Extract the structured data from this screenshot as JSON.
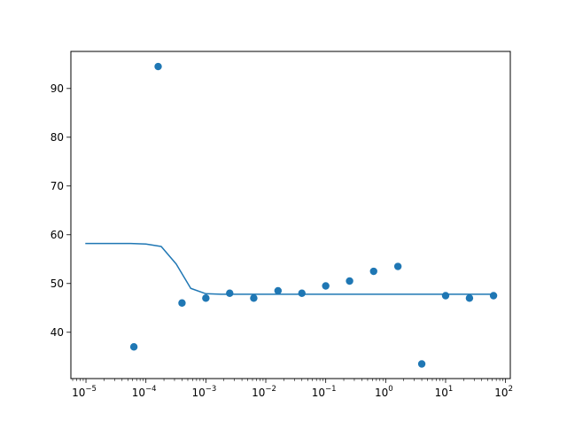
{
  "chart_data": {
    "type": "scatter",
    "title": "",
    "xlabel": "",
    "ylabel": "",
    "xscale": "log",
    "xlim": [
      5.6e-06,
      120
    ],
    "ylim": [
      30.5,
      97.6
    ],
    "grid": false,
    "legend": "none",
    "x_ticks": [
      {
        "base": "10",
        "exp": "−5",
        "value": 1e-05
      },
      {
        "base": "10",
        "exp": "−4",
        "value": 0.0001
      },
      {
        "base": "10",
        "exp": "−3",
        "value": 0.001
      },
      {
        "base": "10",
        "exp": "−2",
        "value": 0.01
      },
      {
        "base": "10",
        "exp": "−1",
        "value": 0.1
      },
      {
        "base": "10",
        "exp": "0",
        "value": 1
      },
      {
        "base": "10",
        "exp": "1",
        "value": 10
      },
      {
        "base": "10",
        "exp": "2",
        "value": 100
      }
    ],
    "y_ticks": [
      {
        "label": "40",
        "value": 40
      },
      {
        "label": "50",
        "value": 50
      },
      {
        "label": "60",
        "value": 60
      },
      {
        "label": "70",
        "value": 70
      },
      {
        "label": "80",
        "value": 80
      },
      {
        "label": "90",
        "value": 90
      }
    ],
    "series": [
      {
        "type": "scatter",
        "color": "#1f77b4",
        "points": [
          [
            6.3e-05,
            37.0
          ],
          [
            0.00016,
            94.5
          ],
          [
            0.0004,
            46.0
          ],
          [
            0.001,
            47.0
          ],
          [
            0.0025,
            48.0
          ],
          [
            0.0063,
            47.0
          ],
          [
            0.016,
            48.5
          ],
          [
            0.04,
            48.0
          ],
          [
            0.1,
            49.5
          ],
          [
            0.25,
            50.5
          ],
          [
            0.63,
            52.5
          ],
          [
            1.6,
            53.5
          ],
          [
            4.0,
            33.5
          ],
          [
            10.0,
            47.5
          ],
          [
            25.0,
            47.0
          ],
          [
            63.0,
            47.5
          ]
        ]
      },
      {
        "type": "line",
        "color": "#1f77b4",
        "points": [
          [
            1e-05,
            58.2
          ],
          [
            1.8e-05,
            58.2
          ],
          [
            3.2e-05,
            58.2
          ],
          [
            5.6e-05,
            58.2
          ],
          [
            0.0001,
            58.1
          ],
          [
            0.00018,
            57.6
          ],
          [
            0.00032,
            54.0
          ],
          [
            0.00056,
            49.0
          ],
          [
            0.001,
            47.9
          ],
          [
            0.0018,
            47.8
          ],
          [
            0.01,
            47.8
          ],
          [
            0.1,
            47.8
          ],
          [
            1.0,
            47.8
          ],
          [
            10.0,
            47.8
          ],
          [
            60.0,
            47.8
          ]
        ]
      }
    ]
  }
}
